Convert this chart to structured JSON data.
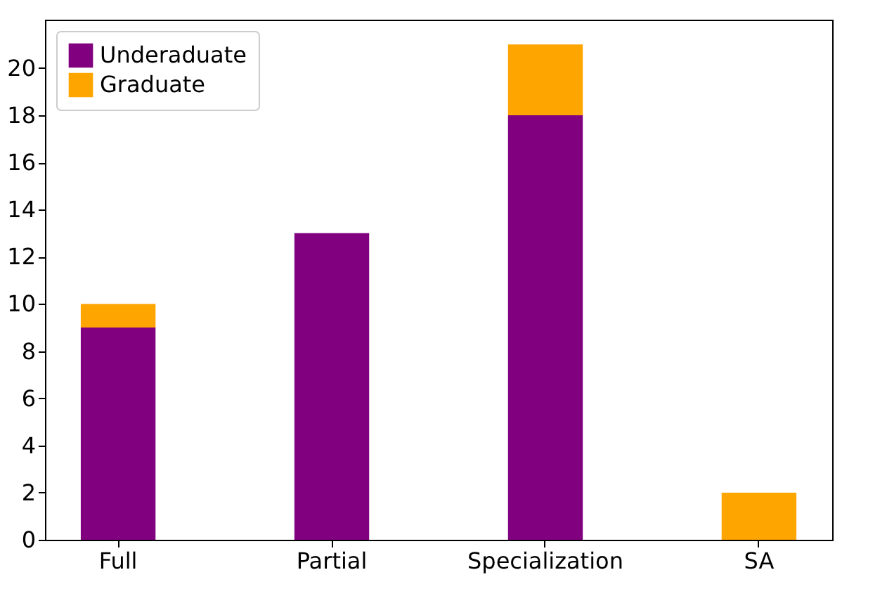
{
  "chart_data": {
    "type": "bar",
    "stacked": true,
    "categories": [
      "Full",
      "Partial",
      "Specialization",
      "SA"
    ],
    "series": [
      {
        "name": "Underaduate",
        "color": "#800080",
        "values": [
          9,
          13,
          18,
          0
        ]
      },
      {
        "name": "Graduate",
        "color": "#ffa500",
        "values": [
          1,
          0,
          3,
          2
        ]
      }
    ],
    "ylim": [
      0,
      22.05
    ],
    "yticks": [
      0,
      2,
      4,
      6,
      8,
      10,
      12,
      14,
      16,
      18,
      20
    ],
    "grid": false,
    "legend": "top left"
  }
}
